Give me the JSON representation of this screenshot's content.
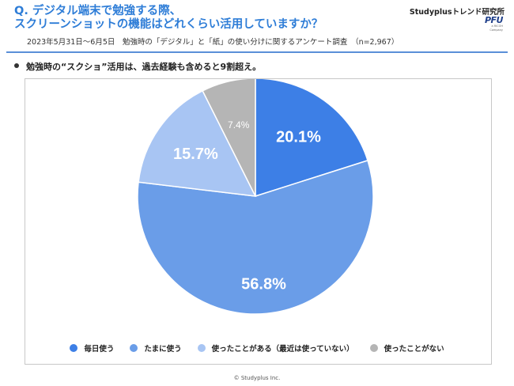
{
  "header": {
    "title_line1": "Q. デジタル端末で勉強する際、",
    "title_line2": "スクリーンショットの機能はどれくらい活用していますか？",
    "subtitle": "2023年5月31日〜6月5日　勉強時の「デジタル」と「紙」の使い分けに関するアンケート調査　（n=2,967）",
    "brand": "Studyplusトレンド研究所",
    "logo_text": "PFU",
    "logo_sub": "a RICOH Company"
  },
  "headline": "勉強時の“スクショ”活用は、過去経験も含めると9割超え。",
  "chart_data": {
    "type": "pie",
    "slices": [
      {
        "label": "毎日使う",
        "value": 20.1,
        "display": "20.1%",
        "color": "#3d7fe6",
        "text_color": "#ffffff"
      },
      {
        "label": "たまに使う",
        "value": 56.8,
        "display": "56.8%",
        "color": "#6a9de8",
        "text_color": "#ffffff"
      },
      {
        "label": "使ったことがある（最近は使っていない）",
        "value": 15.7,
        "display": "15.7%",
        "color": "#a8c5f3",
        "text_color": "#ffffff"
      },
      {
        "label": "使ったことがない",
        "value": 7.4,
        "display": "7.4%",
        "color": "#b5b5b5",
        "text_color": "#ffffff"
      }
    ],
    "start": "12 o'clock",
    "direction": "clockwise",
    "legend_position": "bottom"
  },
  "footer": {
    "copyright": "© Studyplus Inc."
  }
}
